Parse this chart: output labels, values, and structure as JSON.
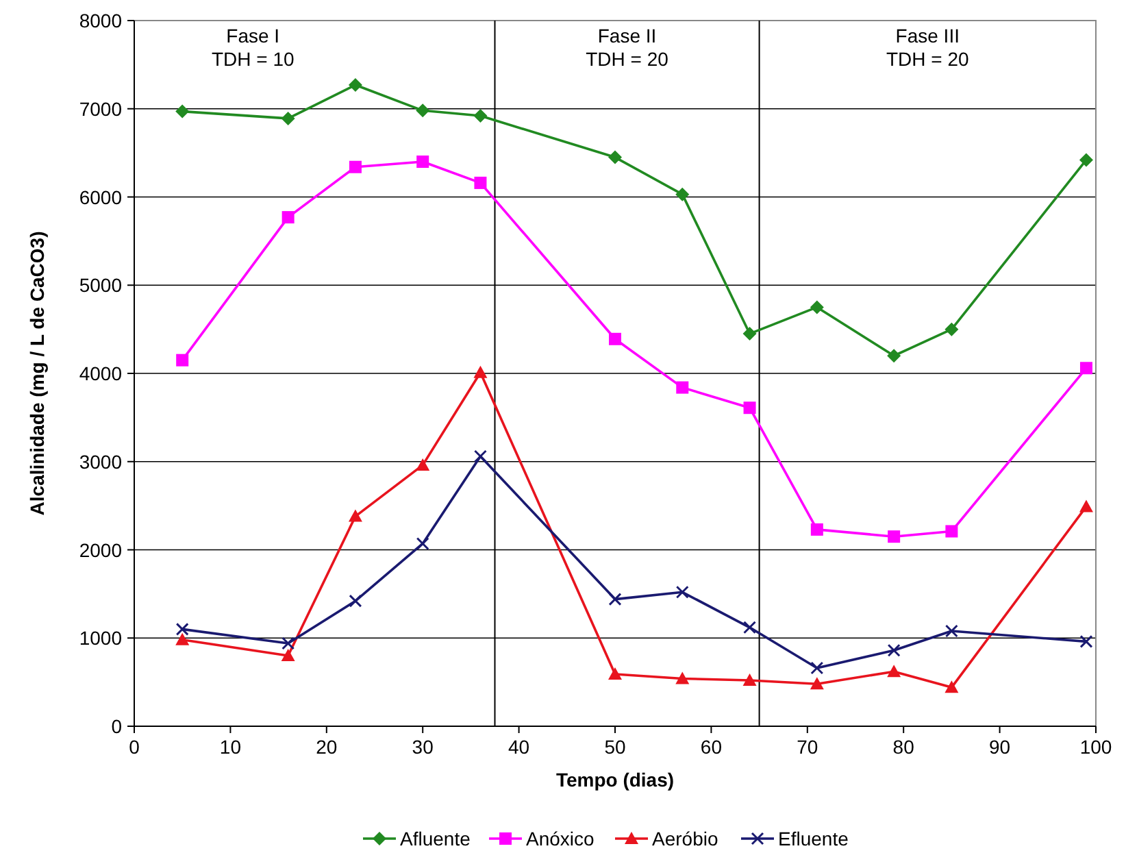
{
  "chart_data": {
    "type": "line",
    "xlabel": "Tempo (dias)",
    "ylabel": "Alcalinidade (mg / L de CaCO3)",
    "xlim": [
      0,
      100
    ],
    "xticks": [
      0,
      10,
      20,
      30,
      40,
      50,
      60,
      70,
      80,
      90,
      100
    ],
    "ylim": [
      0,
      8000
    ],
    "yticks": [
      0,
      1000,
      2000,
      3000,
      4000,
      5000,
      6000,
      7000,
      8000
    ],
    "grid": "y",
    "legend": "bottom",
    "line_style": "solid",
    "ref_lines": [
      {
        "axis": "x",
        "value": 37.5,
        "color": "#000000"
      },
      {
        "axis": "x",
        "value": 65,
        "color": "#000000"
      }
    ],
    "annotations": [
      "Fase I\nTDH = 10",
      "Fase II\nTDH = 20",
      "Fase III\nTDH = 20"
    ],
    "x": [
      5,
      16,
      23,
      30,
      36,
      50,
      57,
      64,
      71,
      79,
      85,
      99
    ],
    "series": [
      {
        "name": "Afluente",
        "color": "#218a21",
        "marker": "diamond",
        "values": [
          6970,
          6890,
          7270,
          6980,
          6920,
          6450,
          6030,
          4450,
          4750,
          4200,
          4500,
          6420
        ]
      },
      {
        "name": "Anóxico",
        "color": "#ff00ff",
        "marker": "square",
        "values": [
          4150,
          5770,
          6340,
          6400,
          6160,
          4390,
          3840,
          3610,
          2230,
          2150,
          2210,
          4060
        ]
      },
      {
        "name": "Aeróbio",
        "color": "#e8141e",
        "marker": "triangle",
        "values": [
          980,
          800,
          2380,
          2960,
          4010,
          590,
          540,
          520,
          480,
          620,
          440,
          2490
        ]
      },
      {
        "name": "Efluente",
        "color": "#1a1a70",
        "marker": "cross",
        "values": [
          1100,
          940,
          1420,
          2070,
          3060,
          1440,
          1520,
          1120,
          660,
          860,
          1080,
          960
        ]
      }
    ]
  }
}
